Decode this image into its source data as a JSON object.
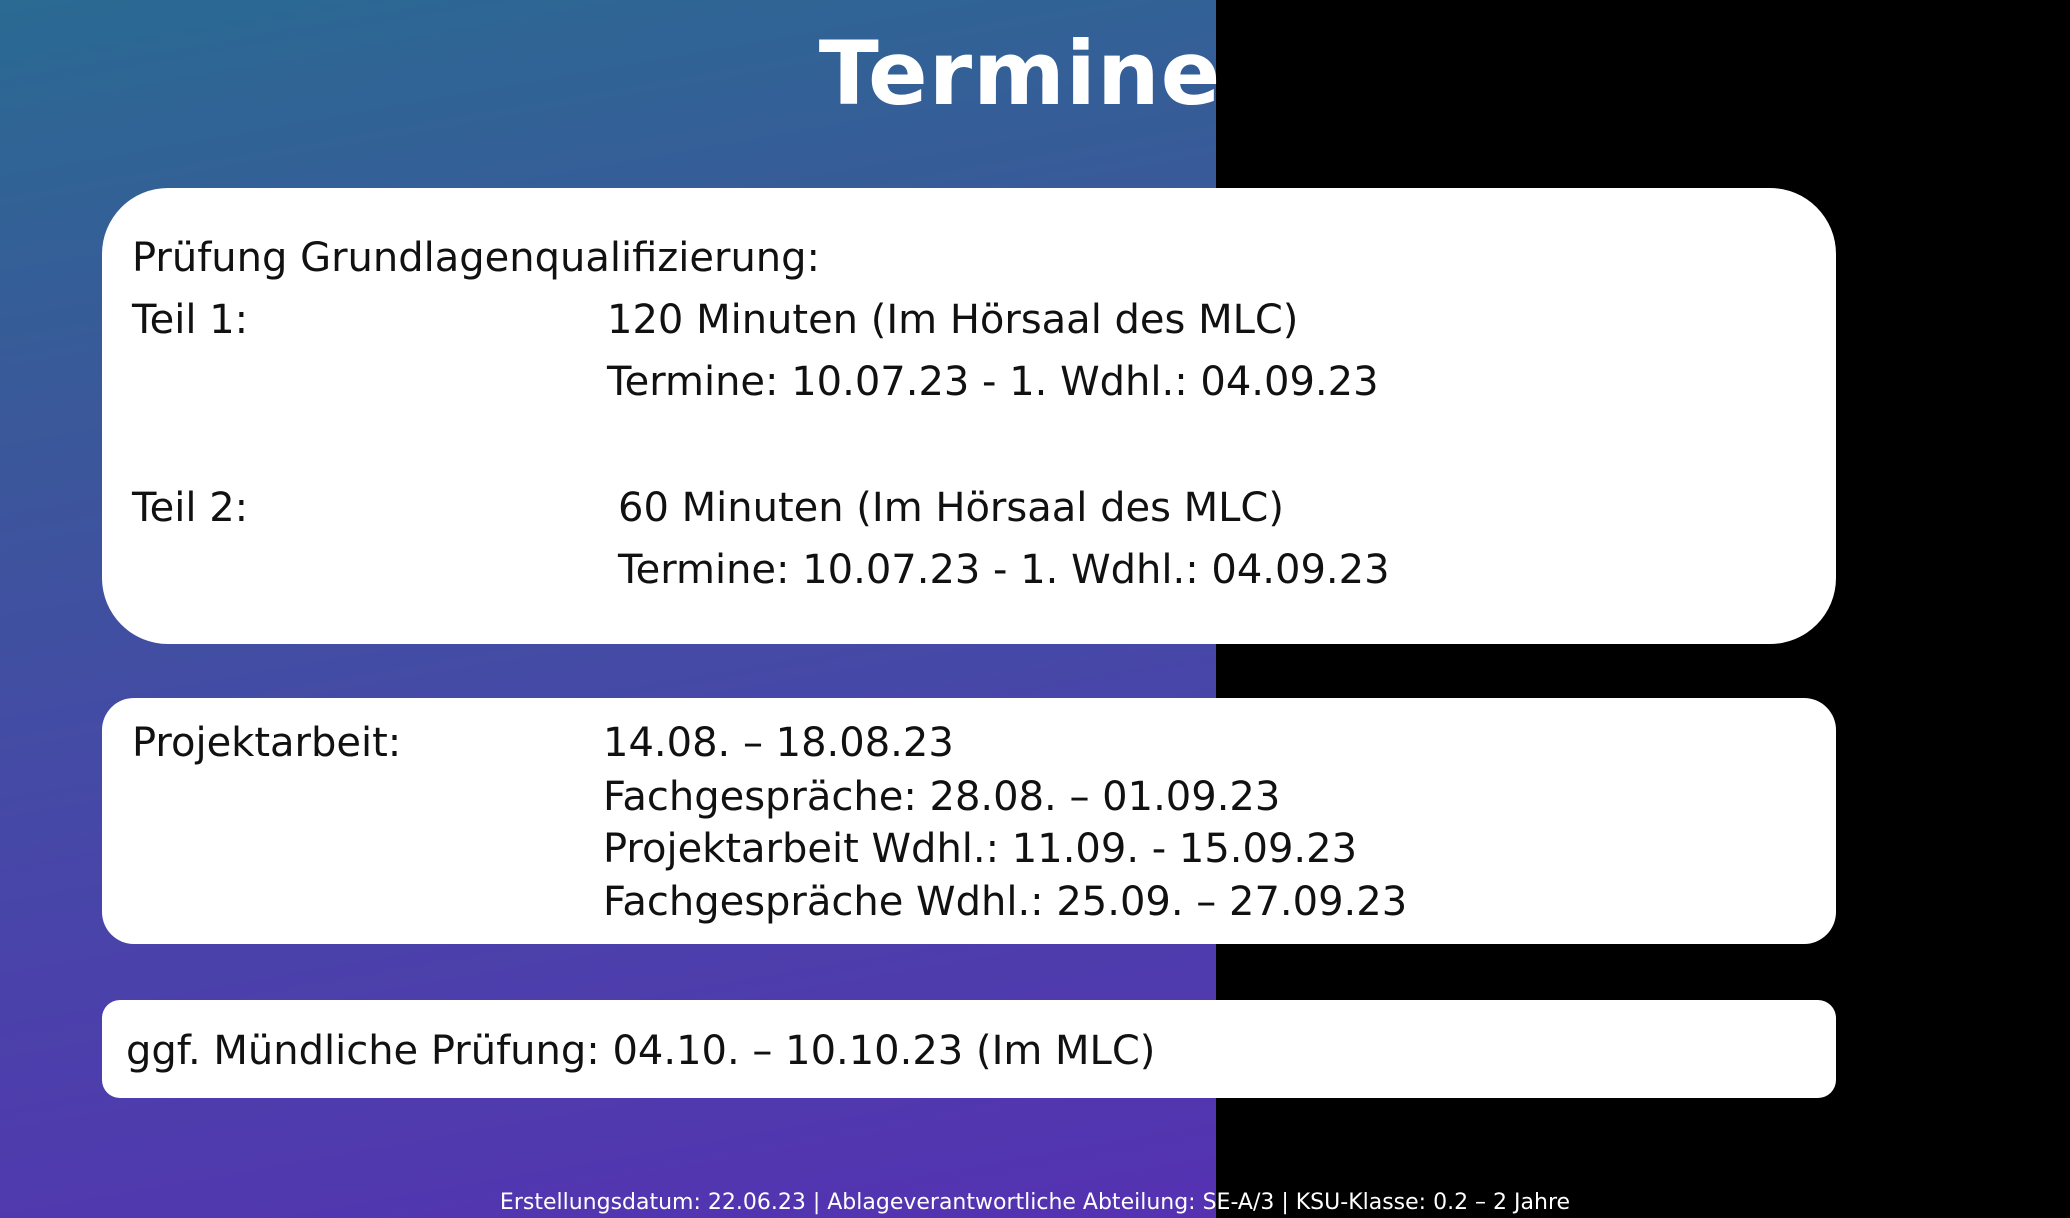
{
  "slide": {
    "title": "Termine"
  },
  "exam": {
    "heading": "Prüfung Grundlagenqualifizierung:",
    "teil1": {
      "label": "Teil 1:",
      "duration": "120 Minuten (Im Hörsaal des MLC)",
      "dates": "Termine: 10.07.23 - 1. Wdhl.: 04.09.23"
    },
    "teil2": {
      "label": "Teil 2:",
      "duration": "60 Minuten (Im Hörsaal des MLC)",
      "dates": "Termine: 10.07.23 - 1. Wdhl.: 04.09.23"
    }
  },
  "project": {
    "label": "Projektarbeit:",
    "lines": [
      "14.08. – 18.08.23",
      "Fachgespräche: 28.08. – 01.09.23",
      "Projektarbeit Wdhl.: 11.09. - 15.09.23",
      "Fachgespräche Wdhl.: 25.09. – 27.09.23"
    ]
  },
  "oral": {
    "text": "ggf. Mündliche Prüfung: 04.10. – 10.10.23 (Im MLC)"
  },
  "footer": {
    "text": "Erstellungsdatum: 22.06.23 | Ablageverantwortliche Abteilung: SE-A/3 | KSU-Klasse: 0.2 – 2 Jahre"
  },
  "colors": {
    "gradient_top": "#2a6a93",
    "gradient_bottom": "#5531b2",
    "card_background": "#ffffff",
    "right_panel": "#000000"
  }
}
